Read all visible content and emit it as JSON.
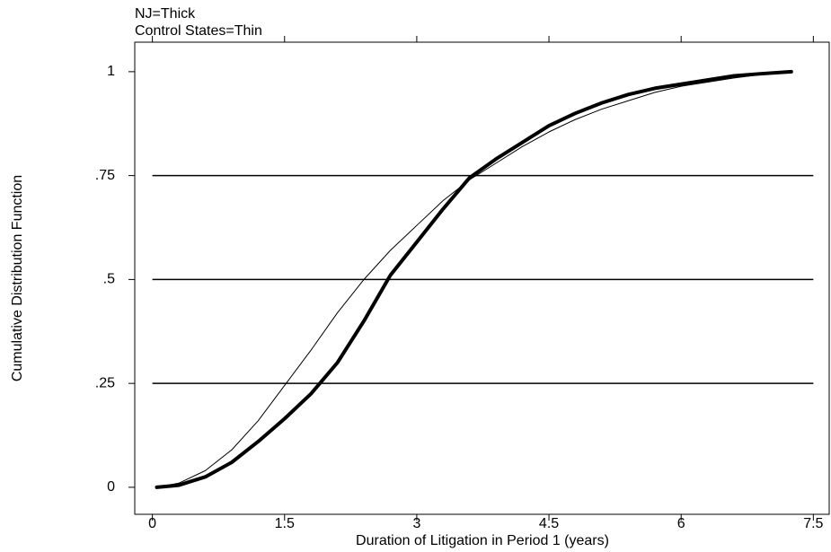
{
  "chart_data": {
    "type": "line",
    "annotations": [
      "NJ=Thick",
      "Control States=Thin"
    ],
    "xlabel": "Duration of Litigation in Period 1 (years)",
    "ylabel": "Cumulative Distribution Function",
    "x": [
      0.05,
      0.3,
      0.6,
      0.9,
      1.2,
      1.5,
      1.8,
      2.1,
      2.4,
      2.7,
      3.0,
      3.3,
      3.6,
      3.9,
      4.2,
      4.5,
      4.8,
      5.1,
      5.4,
      5.7,
      6.0,
      6.3,
      6.6,
      6.9,
      7.25
    ],
    "series": [
      {
        "color": "#000000",
        "width": 4,
        "values": [
          0,
          0.005,
          0.025,
          0.06,
          0.11,
          0.165,
          0.225,
          0.3,
          0.4,
          0.51,
          0.59,
          0.67,
          0.745,
          0.79,
          0.83,
          0.87,
          0.9,
          0.925,
          0.945,
          0.96,
          0.97,
          0.98,
          0.99,
          0.995,
          1
        ]
      },
      {
        "color": "#000000",
        "width": 1,
        "values": [
          0,
          0.01,
          0.04,
          0.09,
          0.16,
          0.245,
          0.33,
          0.42,
          0.5,
          0.57,
          0.63,
          0.69,
          0.74,
          0.78,
          0.82,
          0.855,
          0.885,
          0.91,
          0.93,
          0.95,
          0.965,
          0.975,
          0.985,
          0.993,
          1
        ]
      }
    ],
    "xlim": [
      -0.2,
      7.68
    ],
    "ylim": [
      -0.065,
      1.071
    ],
    "xticks": [
      0,
      1.5,
      3,
      4.5,
      6,
      7.5
    ],
    "yticks": [
      0,
      {
        "value": 0.25,
        "label": ".25"
      },
      {
        "value": 0.5,
        "label": ".5"
      },
      {
        "value": 0.75,
        "label": ".75"
      },
      1
    ],
    "grid": true
  }
}
